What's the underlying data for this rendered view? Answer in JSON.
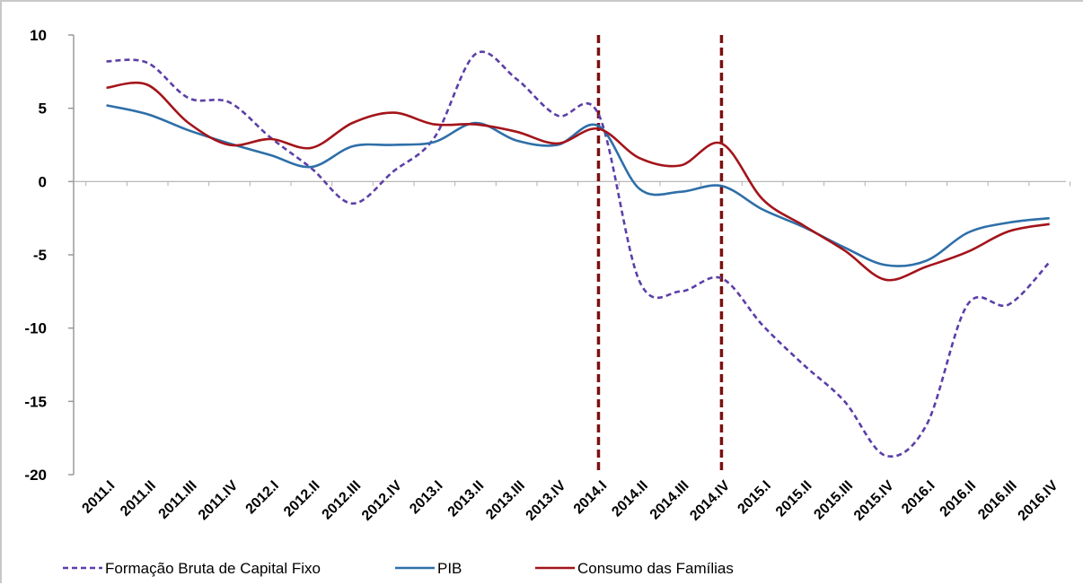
{
  "chart_data": {
    "type": "line",
    "categories": [
      "2011.I",
      "2011.II",
      "2011.III",
      "2011.IV",
      "2012.I",
      "2012.II",
      "2012.III",
      "2012.IV",
      "2013.I",
      "2013.II",
      "2013.III",
      "2013.IV",
      "2014.I",
      "2014.II",
      "2014.III",
      "2014.IV",
      "2015.I",
      "2015.II",
      "2015.III",
      "2015.IV",
      "2016.I",
      "2016.II",
      "2016.III",
      "2016.IV"
    ],
    "ylim": [
      -20,
      10
    ],
    "yticks": [
      10,
      5,
      0,
      -5,
      -10,
      -15,
      -20
    ],
    "series": [
      {
        "name": "Formação Bruta de Capital Fixo",
        "color": "#5b3fa8",
        "dash": true,
        "values": [
          8.2,
          8.1,
          5.7,
          5.4,
          3.0,
          0.9,
          -1.5,
          0.7,
          3.0,
          8.7,
          7.0,
          4.5,
          4.6,
          -6.8,
          -7.5,
          -6.6,
          -9.8,
          -12.5,
          -15.0,
          -18.7,
          -16.6,
          -8.4,
          -8.4,
          -5.5
        ]
      },
      {
        "name": "PIB",
        "color": "#2e6fa8",
        "dash": false,
        "values": [
          5.2,
          4.6,
          3.5,
          2.6,
          1.8,
          1.0,
          2.4,
          2.5,
          2.7,
          4.0,
          2.8,
          2.5,
          3.8,
          -0.5,
          -0.7,
          -0.3,
          -1.9,
          -3.1,
          -4.5,
          -5.7,
          -5.4,
          -3.5,
          -2.8,
          -2.5
        ]
      },
      {
        "name": "Consumo das Famílias",
        "color": "#a3141a",
        "dash": false,
        "values": [
          6.4,
          6.6,
          4.0,
          2.5,
          2.9,
          2.3,
          4.0,
          4.7,
          3.9,
          3.9,
          3.4,
          2.6,
          3.6,
          1.6,
          1.1,
          2.6,
          -1.2,
          -3.0,
          -4.7,
          -6.7,
          -5.8,
          -4.8,
          -3.4,
          -2.9
        ]
      }
    ],
    "vlines": [
      "2014.I",
      "2014.IV"
    ],
    "legend_position": "bottom"
  }
}
